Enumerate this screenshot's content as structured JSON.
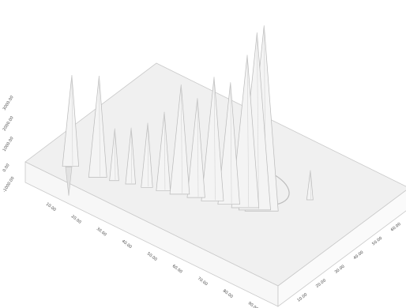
{
  "chart_data": {
    "type": "surface3d",
    "title": "",
    "xlabel": "",
    "ylabel": "",
    "zlabel": "",
    "surface_color": "#f0f0f0",
    "edge_color": "#c9c9c9",
    "x_ticks": [
      "10.00",
      "20.00",
      "30.00",
      "40.00",
      "50.00",
      "60.00",
      "70.00",
      "80.00",
      "90.00"
    ],
    "y_ticks": [
      "10.00",
      "20.00",
      "30.00",
      "40.00",
      "50.00",
      "60.00",
      "70.00"
    ],
    "z_ticks": [
      "-1000.00",
      "0.00",
      "1000.00",
      "2000.00",
      "3000.00"
    ],
    "peaks": [
      {
        "x": 12.0,
        "y": 8.0,
        "z": 2200
      },
      {
        "x": 22.0,
        "y": 9.0,
        "z": 2450
      },
      {
        "x": 27.0,
        "y": 11.0,
        "z": 1250
      },
      {
        "x": 32.0,
        "y": 13.0,
        "z": 1350
      },
      {
        "x": 37.0,
        "y": 15.0,
        "z": 1550
      },
      {
        "x": 42.0,
        "y": 17.0,
        "z": 1900
      },
      {
        "x": 47.0,
        "y": 19.0,
        "z": 2650
      },
      {
        "x": 52.0,
        "y": 21.0,
        "z": 2400
      },
      {
        "x": 57.0,
        "y": 23.0,
        "z": 3000
      },
      {
        "x": 62.0,
        "y": 25.0,
        "z": 2950
      },
      {
        "x": 67.0,
        "y": 27.0,
        "z": 3700
      },
      {
        "x": 70.0,
        "y": 28.0,
        "z": 4300
      },
      {
        "x": 72.0,
        "y": 29.0,
        "z": 4500
      },
      {
        "x": 80.0,
        "y": 44.0,
        "z": 700
      }
    ],
    "dip": {
      "x": 12.0,
      "y": 7.0,
      "z": -700
    },
    "ring": {
      "x": 62.0,
      "y": 38.0,
      "radius": 9.0
    }
  }
}
